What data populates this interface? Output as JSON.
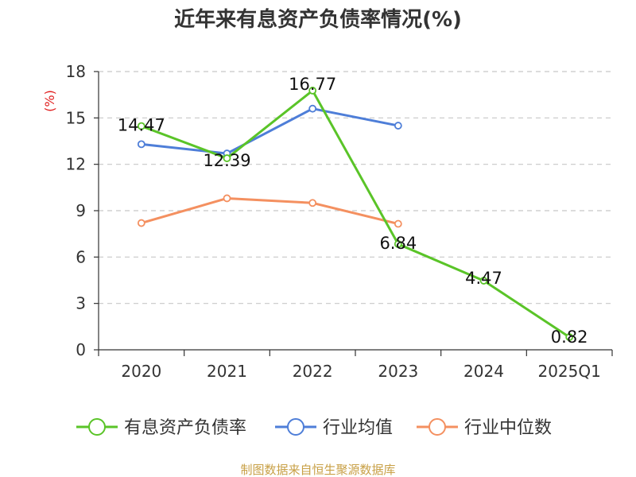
{
  "chart_data": {
    "type": "line",
    "title": "近年来有息资产负债率情况(%)",
    "ylabel": "(%)",
    "categories": [
      "2020",
      "2021",
      "2022",
      "2023",
      "2024",
      "2025Q1"
    ],
    "ylim": [
      0,
      18
    ],
    "yticks": [
      0,
      3,
      6,
      9,
      12,
      15,
      18
    ],
    "grid": true,
    "legend_position": "bottom",
    "series": [
      {
        "name": "有息资产负债率",
        "color": "#5ac428",
        "values": [
          14.47,
          12.39,
          16.77,
          6.84,
          4.47,
          0.82
        ],
        "labels": [
          "14.47",
          "12.39",
          "16.77",
          "6.84",
          "4.47",
          "0.82"
        ]
      },
      {
        "name": "行业均值",
        "color": "#4e7ed8",
        "values": [
          13.3,
          12.7,
          15.6,
          14.5,
          null,
          null
        ]
      },
      {
        "name": "行业中位数",
        "color": "#f49060",
        "values": [
          8.2,
          9.8,
          9.5,
          8.15,
          null,
          null
        ]
      }
    ]
  },
  "source_text": "制图数据来自恒生聚源数据库"
}
